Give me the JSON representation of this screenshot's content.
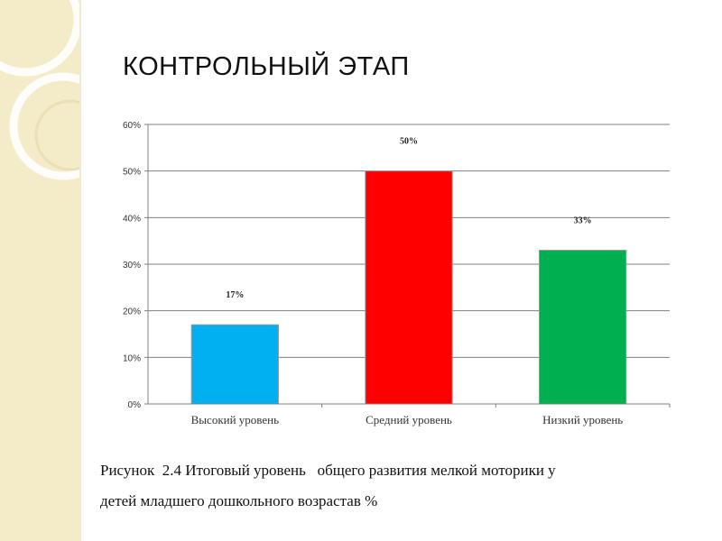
{
  "slide": {
    "title": "КОНТРОЛЬНЫЙ ЭТАП",
    "caption_line1": "Рисунок  2.4 Итоговый уровень   общего развития мелкой моторики у",
    "caption_line2": "детей младшего дошкольного возрастав %"
  },
  "theme": {
    "band_color": "#f4ecc8",
    "ring_color": "#ffffff"
  },
  "chart_data": {
    "type": "bar",
    "categories": [
      "Высокий уровень",
      "Средний уровень",
      "Низкий уровень"
    ],
    "values": [
      17,
      50,
      33
    ],
    "data_labels": [
      "17%",
      "50%",
      "33%"
    ],
    "colors": [
      "#00b0f0",
      "#ff0000",
      "#00b050"
    ],
    "ylim": [
      0,
      60
    ],
    "yticks": [
      "0%",
      "10%",
      "20%",
      "30%",
      "40%",
      "50%",
      "60%"
    ],
    "grid": true,
    "legend": "none"
  }
}
